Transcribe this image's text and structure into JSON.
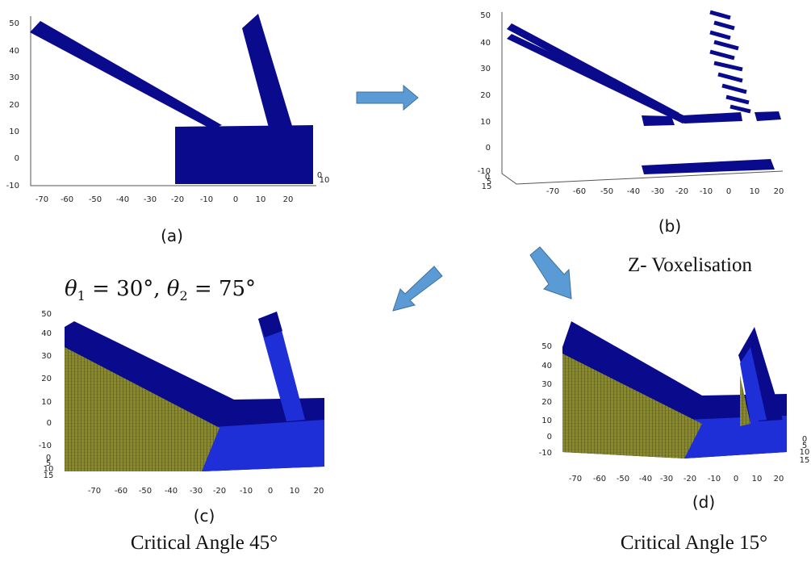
{
  "panels": [
    {
      "caption": "(a)",
      "yticks": [
        "50",
        "40",
        "30",
        "20",
        "10",
        "0",
        "-10"
      ],
      "xticks": [
        "-70",
        "-60",
        "-50",
        "-40",
        "-30",
        "-20",
        "-10",
        "0",
        "10",
        "20"
      ],
      "zticks": [
        "0",
        "10"
      ]
    },
    {
      "caption": "(b)",
      "note": "Z- Voxelisation",
      "yticks": [
        "50",
        "40",
        "30",
        "20",
        "10",
        "0",
        "-10"
      ],
      "xticks": [
        "-70",
        "-60",
        "-50",
        "-40",
        "-30",
        "-20",
        "-10",
        "0",
        "10",
        "20"
      ],
      "zticks": [
        "0",
        "5",
        "15"
      ]
    },
    {
      "caption": "(c)",
      "note": "Critical Angle 45°",
      "yticks": [
        "50",
        "40",
        "30",
        "20",
        "10",
        "0",
        "-10"
      ],
      "xticks": [
        "-70",
        "-60",
        "-50",
        "-40",
        "-30",
        "-20",
        "-10",
        "0",
        "10",
        "20"
      ],
      "zticks": [
        "0",
        "5",
        "10",
        "15"
      ]
    },
    {
      "caption": "(d)",
      "note": "Critical Angle 15°",
      "yticks": [
        "50",
        "40",
        "30",
        "20",
        "10",
        "0",
        "-10"
      ],
      "xticks": [
        "-70",
        "-60",
        "-50",
        "-40",
        "-30",
        "-20",
        "-10",
        "0",
        "10",
        "20"
      ],
      "zticks": [
        "0",
        "5",
        "10",
        "15"
      ]
    }
  ],
  "angle_label": [
    "θ",
    "1",
    " = 30°,  ",
    "θ",
    "2",
    " = 75°"
  ]
}
